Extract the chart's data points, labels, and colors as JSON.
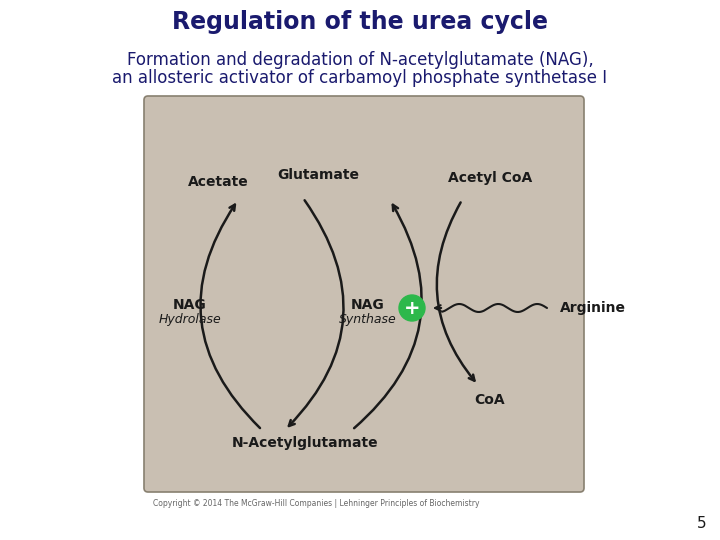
{
  "title": "Regulation of the urea cycle",
  "subtitle_line1": "Formation and degradation of N-acetylglutamate (NAG),",
  "subtitle_line2": "an allosteric activator of carbamoyl phosphate synthetase I",
  "title_color": "#1a1a6e",
  "subtitle_color": "#1a1a6e",
  "bg_color": "#ffffff",
  "box_bg_color": "#c9bfb2",
  "box_edge_color": "#888070",
  "label_acetate": "Acetate",
  "label_glutamate": "Glutamate",
  "label_acetylcoa": "Acetyl CoA",
  "label_nag_left": "NAG",
  "label_hydrolase": "Hydrolase",
  "label_nag_right": "NAG",
  "label_synthase": "Synthase",
  "label_arginine": "Arginine",
  "label_nacetylglutamate": "N-Acetylglutamate",
  "label_coa": "CoA",
  "page_number": "5",
  "copyright_text": "Copyright © 2014 The McGraw-Hill Companies | Lehninger Principles of Biochemistry",
  "title_fontsize": 17,
  "subtitle_fontsize": 12,
  "label_fontsize": 10,
  "enzyme_fontsize": 9,
  "text_color": "#1a1a1a"
}
